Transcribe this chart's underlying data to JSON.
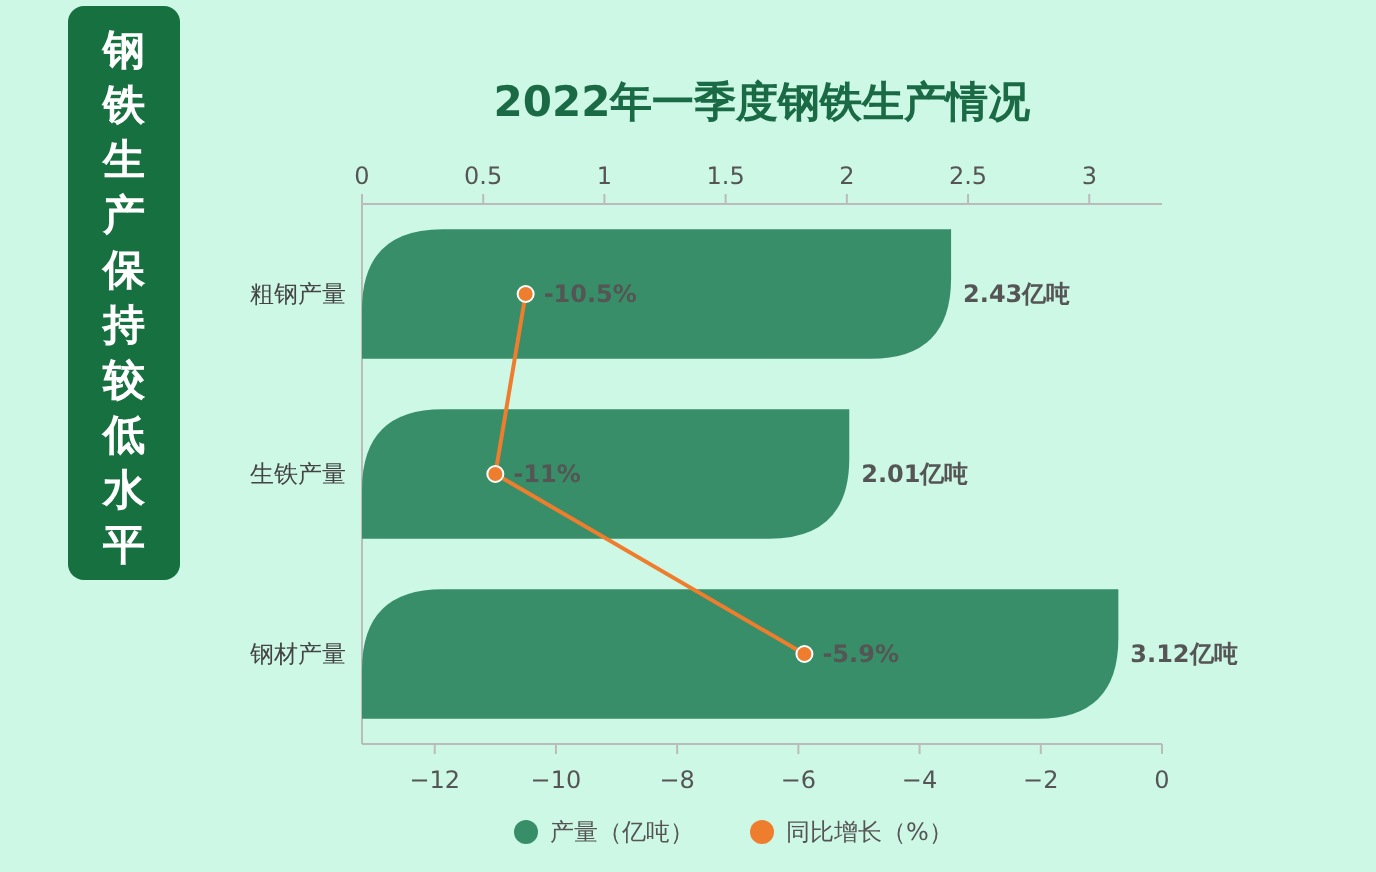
{
  "chart_data": {
    "type": "bar",
    "orientation": "horizontal",
    "title": "2022年一季度钢铁生产情况",
    "subtitle": "钢铁生产保持较低水平",
    "categories": [
      "粗钢产量",
      "生铁产量",
      "钢材产量"
    ],
    "series": [
      {
        "name": "产量（亿吨）",
        "axis": "x2",
        "color": "#388e68",
        "values": [
          2.43,
          2.01,
          3.12
        ],
        "value_labels": [
          "2.43亿吨",
          "2.01亿吨",
          "3.12亿吨"
        ]
      },
      {
        "name": "同比增长（%）",
        "type": "line",
        "color": "#ee7d2e",
        "values": [
          -10.5,
          -11,
          -5.9
        ],
        "value_labels": [
          "-10.5%",
          "-11%",
          "-5.9%"
        ],
        "marker": "circle"
      }
    ],
    "x2lim": [
      0,
      3.3
    ],
    "x2ticks": [
      0,
      0.5,
      1,
      1.5,
      2,
      2.5,
      3
    ],
    "xlim": [
      -13.2,
      0
    ],
    "xticks": [
      -12,
      -10,
      -8,
      -6,
      -4,
      -2,
      0
    ],
    "grid": false,
    "legend": "bottom"
  }
}
